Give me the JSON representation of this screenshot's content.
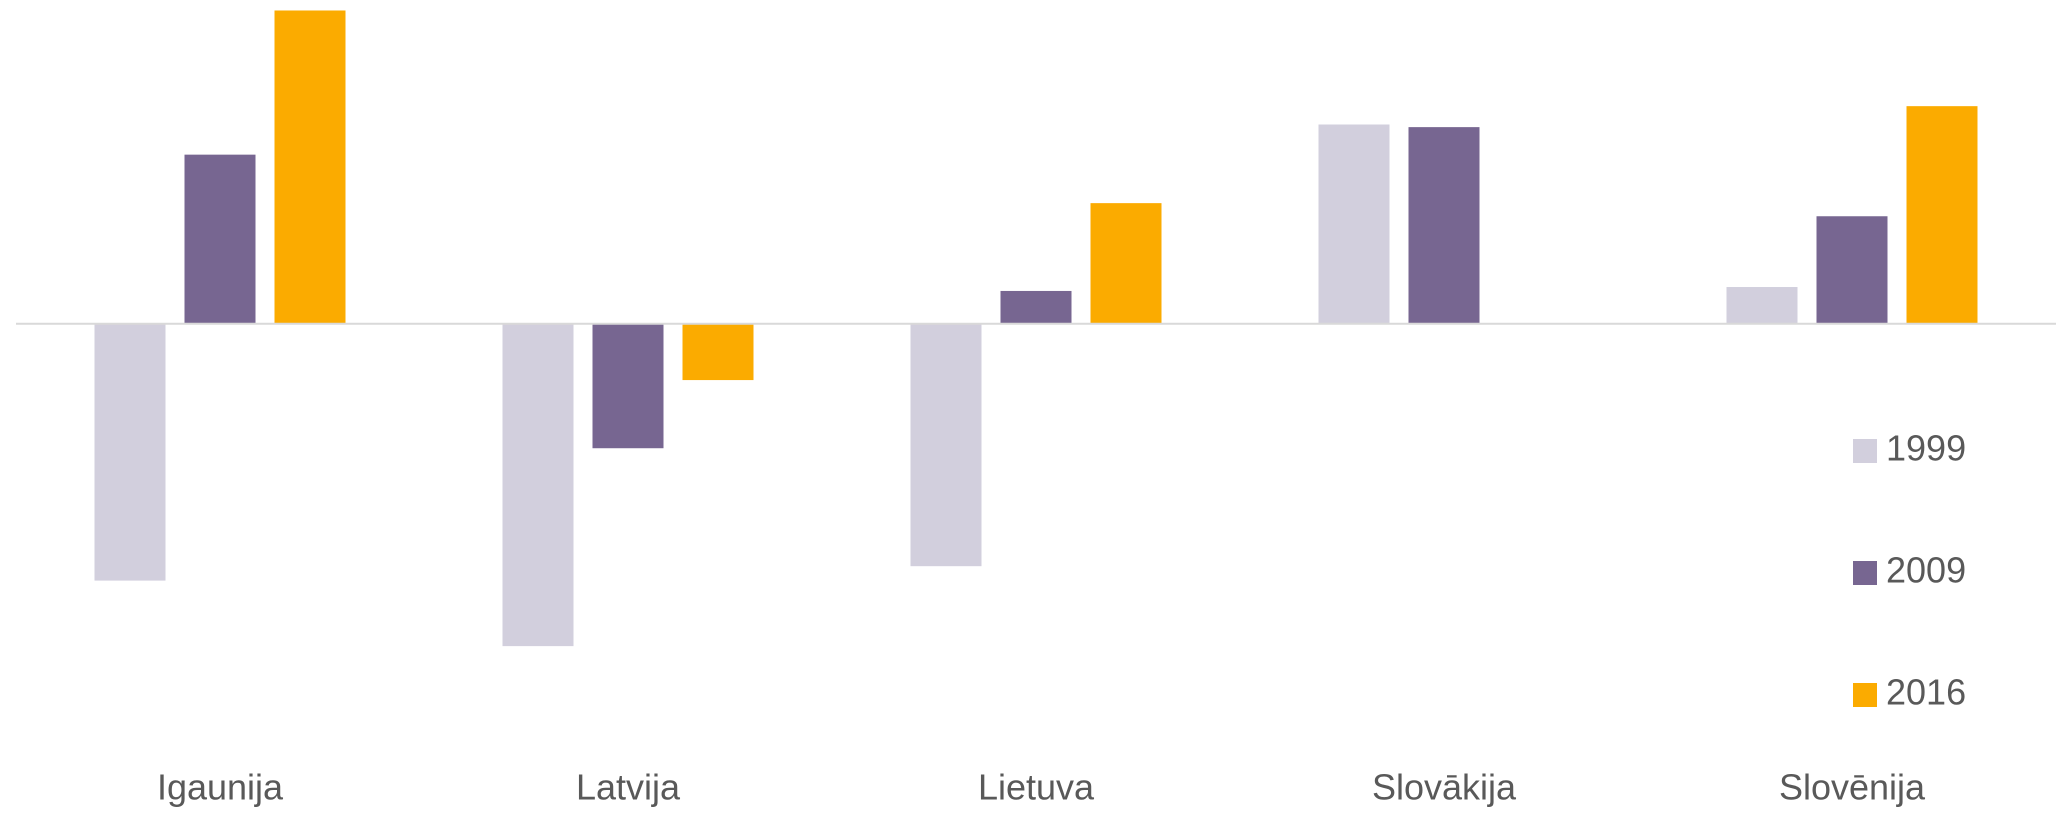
{
  "chart_data": {
    "type": "bar",
    "categories": [
      "Igaunija",
      "Latvija",
      "Lietuva",
      "Slovākija",
      "Slovēnija"
    ],
    "series": [
      {
        "name": "1999",
        "color": "#d2cfdd",
        "values": [
          -19.6,
          -24.6,
          -18.5,
          15.2,
          2.8
        ]
      },
      {
        "name": "2009",
        "color": "#776691",
        "values": [
          12.9,
          -9.5,
          2.5,
          15.0,
          8.2
        ]
      },
      {
        "name": "2016",
        "color": "#fbab00",
        "values": [
          23.9,
          -4.3,
          9.2,
          0,
          16.6
        ]
      }
    ],
    "ylim": [
      -31,
      24.7
    ],
    "grid": false,
    "legend": "right"
  }
}
